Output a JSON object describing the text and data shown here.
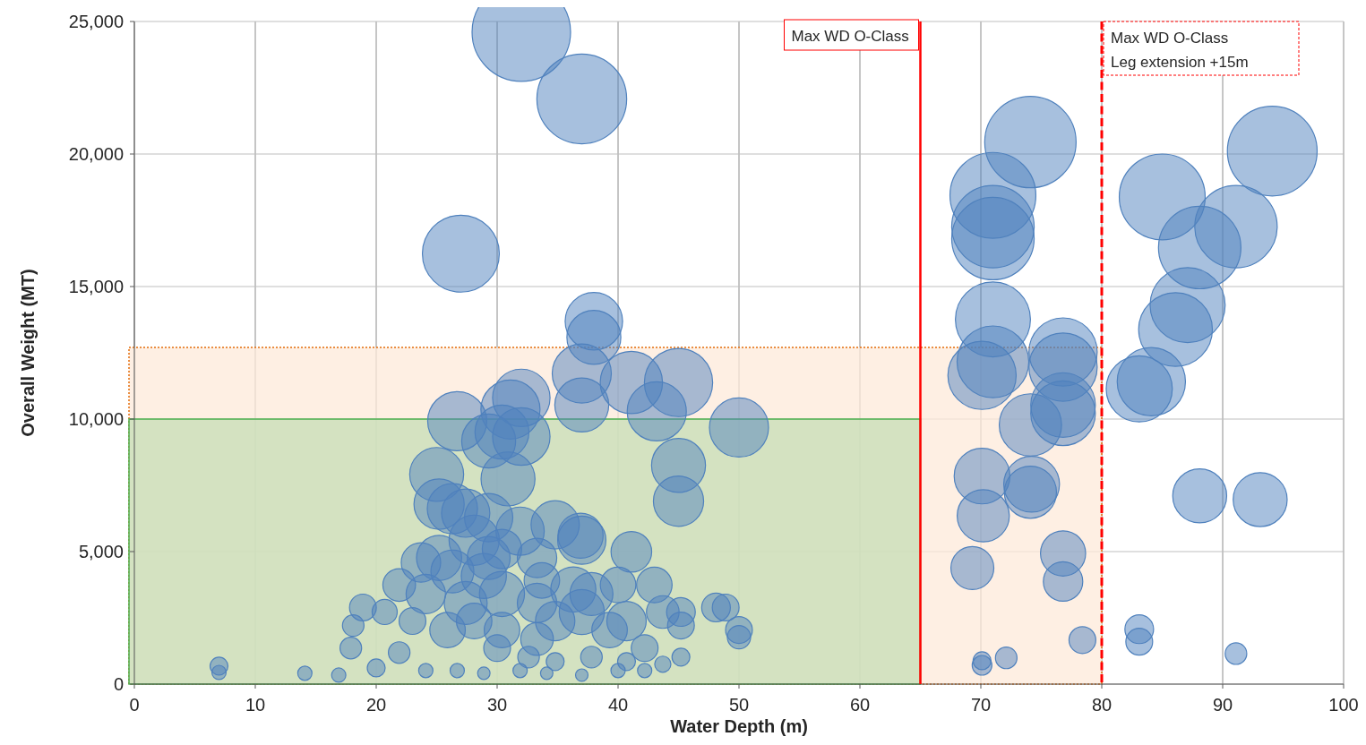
{
  "chart_data": {
    "type": "bubble",
    "xlabel": "Water Depth (m)",
    "ylabel": "Overall Weight (MT)",
    "xlim": [
      0,
      100
    ],
    "xticks": [
      0,
      10,
      20,
      30,
      40,
      50,
      60,
      70,
      80,
      90,
      100
    ],
    "ylim": [
      0,
      25000
    ],
    "yticks": [
      0,
      {
        "value": 5000,
        "label": "5,000"
      },
      {
        "value": 10000,
        "label": "10,000"
      },
      {
        "value": 15000,
        "label": "15,000"
      },
      {
        "value": 20000,
        "label": "20,000"
      },
      {
        "value": 25000,
        "label": "25,000"
      }
    ],
    "grid": true,
    "bands": [
      {
        "axis": "y",
        "from": 0,
        "to": 10000,
        "color": "#c5deb5"
      },
      {
        "axis": "y",
        "from": 0,
        "to": 12700,
        "color": "#fde9d9"
      }
    ],
    "ref_lines": [
      {
        "axis": "x",
        "value": 65,
        "label": "Max WD O-Class",
        "color": "#ff0000",
        "line_style": "solid"
      },
      {
        "axis": "x",
        "value": 80,
        "label": "Max WD O-Class\nLeg extension +15m",
        "color": "#ff0000",
        "line_style": "dashed"
      }
    ],
    "series": [
      {
        "color": "#4f81bd",
        "x": [
          32,
          37,
          27,
          38,
          38,
          37,
          37,
          41.1,
          45,
          43.2,
          32,
          31.1,
          26.7,
          30.4,
          29.3,
          32,
          50,
          45,
          45,
          30.9,
          25,
          25.2,
          26.3,
          27.4,
          29.3,
          31.9,
          28.1,
          34.8,
          36.9,
          37,
          41.1,
          25.2,
          23.7,
          26.3,
          29.3,
          33.7,
          36.3,
          40,
          43,
          21.9,
          24.1,
          18.9,
          20.7,
          23,
          18.1,
          17.9,
          21.9,
          20,
          7,
          7,
          14.1,
          16.9,
          25.9,
          28.1,
          30.4,
          33.3,
          34.8,
          37,
          39.3,
          40.7,
          42.2,
          43.7,
          45.2,
          45.2,
          48.1,
          48.9,
          50,
          50,
          30,
          32.6,
          34.8,
          37.8,
          40.7,
          43.7,
          45.2,
          24.1,
          26.7,
          28.9,
          31.9,
          34.1,
          37,
          40,
          42.2,
          27.4,
          30.4,
          33.3,
          37.8,
          28.9,
          30.4,
          33.3,
          74.1,
          71,
          71,
          71,
          71,
          71,
          70.1,
          76.8,
          76.8,
          76.8,
          76.8,
          74.1,
          70.1,
          74.2,
          74.1,
          70.2,
          69.3,
          76.8,
          76.8,
          78.4,
          72.1,
          70.1,
          70.1,
          85,
          94.1,
          91.1,
          88.1,
          87.1,
          86.1,
          84.1,
          83.1,
          88.1,
          93.1,
          83.1,
          83.1,
          91.1
        ],
        "values": [
          24600,
          22080,
          16240,
          13690,
          13080,
          11720,
          10530,
          11380,
          11380,
          10290,
          10800,
          10360,
          9920,
          9510,
          9170,
          9340,
          9680,
          8250,
          6900,
          7740,
          7910,
          6790,
          6620,
          6450,
          6280,
          5770,
          5430,
          6010,
          5600,
          5430,
          4990,
          4760,
          4590,
          4250,
          4760,
          3910,
          3570,
          3740,
          3740,
          3740,
          3400,
          2890,
          2720,
          2380,
          2210,
          1360,
          1190,
          610,
          680,
          440,
          410,
          340,
          2040,
          2380,
          2040,
          1700,
          2380,
          2720,
          2040,
          2380,
          1360,
          2720,
          2720,
          2210,
          2890,
          2890,
          2040,
          1770,
          1360,
          1020,
          850,
          1020,
          850,
          750,
          1020,
          510,
          510,
          410,
          510,
          410,
          340,
          510,
          510,
          3060,
          3400,
          3060,
          3400,
          4080,
          5100,
          4760,
          20450,
          18440,
          17260,
          16810,
          13760,
          12160,
          11650,
          12530,
          11960,
          10530,
          10220,
          9780,
          7850,
          7540,
          7240,
          6350,
          4380,
          4930,
          3870,
          1660,
          990,
          710,
          880,
          18380,
          20110,
          17260,
          16470,
          14300,
          13380,
          11410,
          11140,
          7100,
          6960,
          2070,
          1600,
          1150
        ],
        "sizes": [
          1,
          0.83,
          0.61,
          0.34,
          0.3,
          0.36,
          0.3,
          0.4,
          0.48,
          0.36,
          0.34,
          0.36,
          0.36,
          0.3,
          0.3,
          0.34,
          0.36,
          0.3,
          0.26,
          0.3,
          0.3,
          0.26,
          0.26,
          0.24,
          0.24,
          0.24,
          0.26,
          0.24,
          0.21,
          0.24,
          0.17,
          0.21,
          0.16,
          0.19,
          0.19,
          0.13,
          0.21,
          0.13,
          0.13,
          0.11,
          0.16,
          0.074,
          0.065,
          0.074,
          0.048,
          0.048,
          0.048,
          0.033,
          0.033,
          0.021,
          0.021,
          0.021,
          0.13,
          0.13,
          0.13,
          0.11,
          0.16,
          0.21,
          0.13,
          0.16,
          0.074,
          0.11,
          0.085,
          0.074,
          0.085,
          0.074,
          0.074,
          0.056,
          0.074,
          0.048,
          0.033,
          0.048,
          0.033,
          0.027,
          0.033,
          0.021,
          0.021,
          0.016,
          0.021,
          0.016,
          0.016,
          0.021,
          0.021,
          0.19,
          0.21,
          0.16,
          0.19,
          0.21,
          0.16,
          0.16,
          0.86,
          0.76,
          0.7,
          0.7,
          0.58,
          0.53,
          0.48,
          0.48,
          0.48,
          0.43,
          0.43,
          0.4,
          0.32,
          0.32,
          0.28,
          0.28,
          0.19,
          0.21,
          0.16,
          0.074,
          0.048,
          0.04,
          0.033,
          0.76,
          0.83,
          0.7,
          0.7,
          0.58,
          0.56,
          0.48,
          0.45,
          0.3,
          0.3,
          0.085,
          0.074,
          0.048
        ]
      }
    ]
  }
}
